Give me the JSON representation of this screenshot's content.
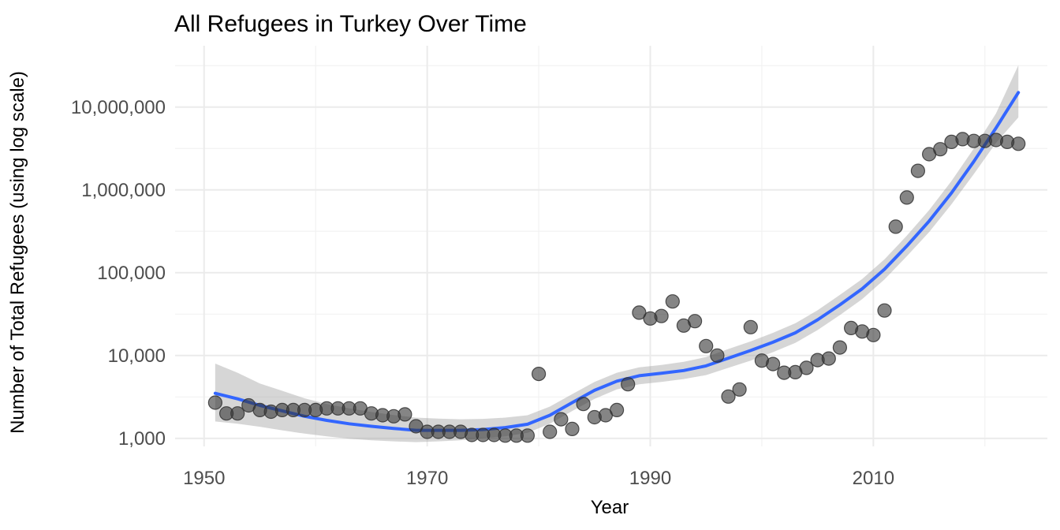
{
  "chart_data": {
    "type": "scatter",
    "title": "All Refugees in Turkey Over Time",
    "xlabel": "Year",
    "ylabel": "Number of Total Refugees (using log scale)",
    "y_scale": "log10",
    "xlim": [
      1947.4,
      2025.6
    ],
    "ylim": [
      800,
      55000000
    ],
    "x_ticks": [
      1950,
      1970,
      1990,
      2010
    ],
    "x_tick_labels": [
      "1950",
      "1970",
      "1990",
      "2010"
    ],
    "y_ticks": [
      1000,
      10000,
      100000,
      1000000,
      10000000
    ],
    "y_tick_labels": [
      "1,000",
      "10,000",
      "100,000",
      "1,000,000",
      "10,000,000"
    ],
    "grid": true,
    "legend": "none",
    "colors": {
      "points": "#333333",
      "trend_line": "#3366ff",
      "confidence_band": "#999999"
    },
    "series": [
      {
        "kind": "points",
        "x": [
          1951,
          1952,
          1953,
          1954,
          1955,
          1956,
          1957,
          1958,
          1959,
          1960,
          1961,
          1962,
          1963,
          1964,
          1965,
          1966,
          1967,
          1968,
          1969,
          1970,
          1971,
          1972,
          1973,
          1974,
          1975,
          1976,
          1977,
          1978,
          1979,
          1980,
          1981,
          1982,
          1983,
          1984,
          1985,
          1986,
          1987,
          1988,
          1989,
          1990,
          1991,
          1992,
          1993,
          1994,
          1995,
          1996,
          1997,
          1998,
          1999,
          2000,
          2001,
          2002,
          2003,
          2004,
          2005,
          2006,
          2007,
          2008,
          2009,
          2010,
          2011,
          2012,
          2013,
          2014,
          2015,
          2016,
          2017,
          2018,
          2019,
          2020,
          2021,
          2022,
          2023
        ],
        "y": [
          2700,
          2000,
          2000,
          2500,
          2200,
          2100,
          2200,
          2200,
          2200,
          2200,
          2300,
          2300,
          2300,
          2300,
          2000,
          1900,
          1850,
          1950,
          1400,
          1200,
          1200,
          1200,
          1200,
          1100,
          1100,
          1100,
          1080,
          1080,
          1080,
          6000,
          1200,
          1700,
          1300,
          2600,
          1800,
          1900,
          2200,
          4500,
          33000,
          28000,
          30000,
          45000,
          23000,
          26000,
          13000,
          10000,
          3200,
          3900,
          22000,
          8700,
          7900,
          6200,
          6300,
          7100,
          8800,
          9200,
          12500,
          21500,
          19500,
          17700,
          35000,
          360000,
          810000,
          1700000,
          2700000,
          3100000,
          3800000,
          4100000,
          3900000,
          3900000,
          4000000,
          3800000,
          3600000
        ]
      },
      {
        "kind": "smooth",
        "x": [
          1951,
          1953,
          1955,
          1957,
          1959,
          1961,
          1963,
          1965,
          1967,
          1969,
          1971,
          1973,
          1975,
          1977,
          1979,
          1981,
          1983,
          1985,
          1987,
          1989,
          1991,
          1993,
          1995,
          1997,
          1999,
          2001,
          2003,
          2005,
          2007,
          2009,
          2011,
          2013,
          2015,
          2017,
          2019,
          2021,
          2023
        ],
        "y": [
          3500,
          3000,
          2500,
          2150,
          1850,
          1650,
          1500,
          1400,
          1320,
          1250,
          1250,
          1250,
          1280,
          1350,
          1480,
          1900,
          2700,
          3800,
          4900,
          5700,
          6100,
          6600,
          7500,
          9300,
          11500,
          14500,
          18800,
          27000,
          41000,
          64000,
          110000,
          210000,
          420000,
          920000,
          2200000,
          5600000,
          15000000
        ],
        "ci_lower": [
          1600,
          1500,
          1380,
          1250,
          1140,
          1060,
          990,
          950,
          920,
          900,
          920,
          950,
          1000,
          1060,
          1170,
          1500,
          2140,
          3000,
          3900,
          4500,
          4800,
          5200,
          5800,
          7100,
          8700,
          11000,
          14200,
          20300,
          30800,
          48000,
          83000,
          158000,
          310000,
          670000,
          1550000,
          3700000,
          7500000
        ],
        "ci_upper": [
          8000,
          6200,
          4600,
          3750,
          3050,
          2600,
          2300,
          2080,
          1910,
          1780,
          1730,
          1700,
          1720,
          1780,
          1900,
          2420,
          3420,
          4800,
          6200,
          7200,
          7700,
          8400,
          9600,
          12000,
          14800,
          18800,
          24500,
          35200,
          54000,
          84000,
          145000,
          280000,
          570000,
          1280000,
          3150000,
          8400000,
          32000000
        ]
      }
    ]
  }
}
